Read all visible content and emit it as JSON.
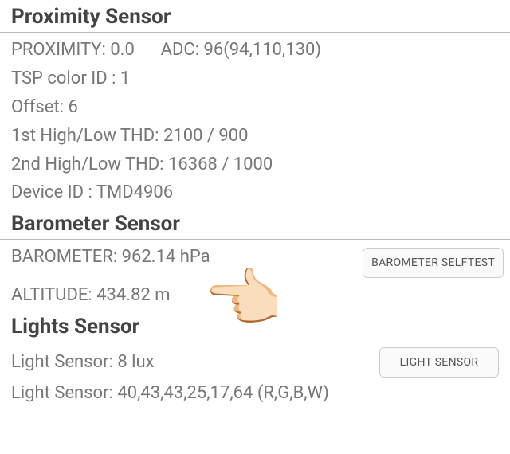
{
  "proximity": {
    "title": "Proximity Sensor",
    "proximity_label": "PROXIMITY:",
    "proximity_value": "0.0",
    "adc_label": "ADC:",
    "adc_value": "96(94,110,130)",
    "tsp_label": "TSP color ID :",
    "tsp_value": "1",
    "offset_label": "Offset:",
    "offset_value": "6",
    "thd1_label": "1st High/Low THD:",
    "thd1_value": "2100 / 900",
    "thd2_label": "2nd High/Low THD:",
    "thd2_value": "16368 / 1000",
    "device_label": "Device ID :",
    "device_value": "TMD4906"
  },
  "barometer": {
    "title": "Barometer Sensor",
    "baro_label": "BAROMETER:",
    "baro_value": "962.14 hPa",
    "alt_label": "ALTITUDE:",
    "alt_value": "434.82 m",
    "selftest_btn": "BAROMETER SELFTEST"
  },
  "lights": {
    "title": "Lights Sensor",
    "lux_label": "Light Sensor:",
    "lux_value": "8 lux",
    "rgbw_label": "Light Sensor:",
    "rgbw_value": "40,43,43,25,17,64 (R,G,B,W)",
    "btn": "LIGHT SENSOR"
  },
  "colors": {
    "title": "#444444",
    "text": "#777777",
    "divider": "#bbbbbb",
    "button_bg": "#fafafa",
    "button_border": "#cccccc"
  }
}
